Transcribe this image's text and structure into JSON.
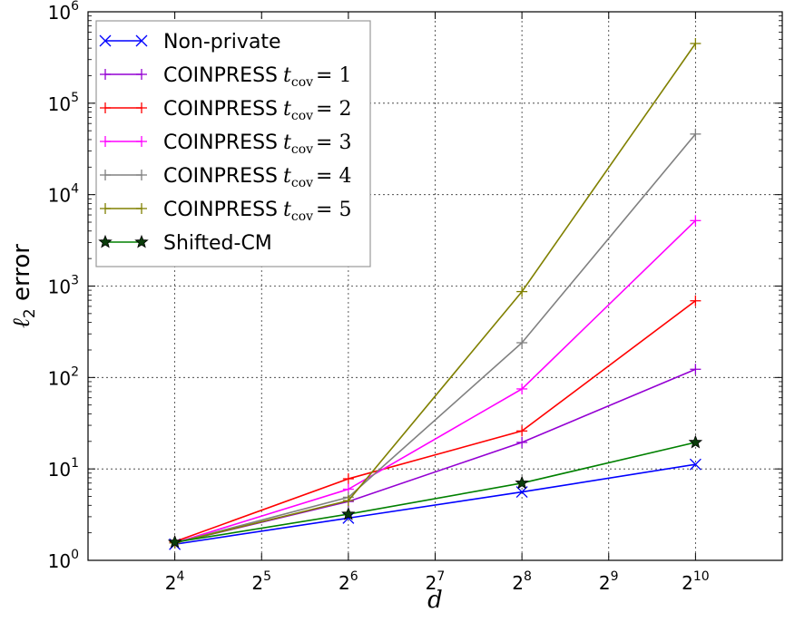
{
  "chart_data": {
    "type": "line",
    "title": "",
    "xlabel": "d",
    "ylabel": "ℓ2 error",
    "x_scale": "log2",
    "y_scale": "log10",
    "x": [
      16,
      64,
      256,
      1024
    ],
    "xlim": [
      8,
      2048
    ],
    "ylim": [
      1,
      1000000
    ],
    "x_ticks": [
      {
        "base": "2",
        "exp": "4"
      },
      {
        "base": "2",
        "exp": "5"
      },
      {
        "base": "2",
        "exp": "6"
      },
      {
        "base": "2",
        "exp": "7"
      },
      {
        "base": "2",
        "exp": "8"
      },
      {
        "base": "2",
        "exp": "9"
      },
      {
        "base": "2",
        "exp": "10"
      }
    ],
    "y_ticks": [
      {
        "base": "10",
        "exp": "0"
      },
      {
        "base": "10",
        "exp": "1"
      },
      {
        "base": "10",
        "exp": "2"
      },
      {
        "base": "10",
        "exp": "3"
      },
      {
        "base": "10",
        "exp": "4"
      },
      {
        "base": "10",
        "exp": "5"
      },
      {
        "base": "10",
        "exp": "6"
      }
    ],
    "grid": true,
    "legend_position": "top-left",
    "series": [
      {
        "name": "Non-private",
        "math": "",
        "color": "#0000ff",
        "marker": "x",
        "values": [
          1.5,
          2.9,
          5.6,
          11.2
        ]
      },
      {
        "name": "COINPRESS",
        "math": "t",
        "sub": "cov",
        "eq": "= 1",
        "color": "#9400d3",
        "marker": "+",
        "values": [
          1.55,
          4.4,
          19.5,
          123
        ]
      },
      {
        "name": "COINPRESS",
        "math": "t",
        "sub": "cov",
        "eq": "= 2",
        "color": "#ff0000",
        "marker": "+",
        "values": [
          1.6,
          7.8,
          26,
          690
        ]
      },
      {
        "name": "COINPRESS",
        "math": "t",
        "sub": "cov",
        "eq": "= 3",
        "color": "#ff00ff",
        "marker": "+",
        "values": [
          1.55,
          6.0,
          75,
          5200
        ]
      },
      {
        "name": "COINPRESS",
        "math": "t",
        "sub": "cov",
        "eq": "= 4",
        "color": "#808080",
        "marker": "+",
        "values": [
          1.55,
          4.9,
          240,
          46000
        ]
      },
      {
        "name": "COINPRESS",
        "math": "t",
        "sub": "cov",
        "eq": "= 5",
        "color": "#808000",
        "marker": "+",
        "values": [
          1.55,
          4.5,
          870,
          450000
        ]
      },
      {
        "name": "Shifted-CM",
        "math": "",
        "color": "#008000",
        "marker": "star",
        "values": [
          1.58,
          3.2,
          7.0,
          19.5
        ]
      }
    ]
  }
}
